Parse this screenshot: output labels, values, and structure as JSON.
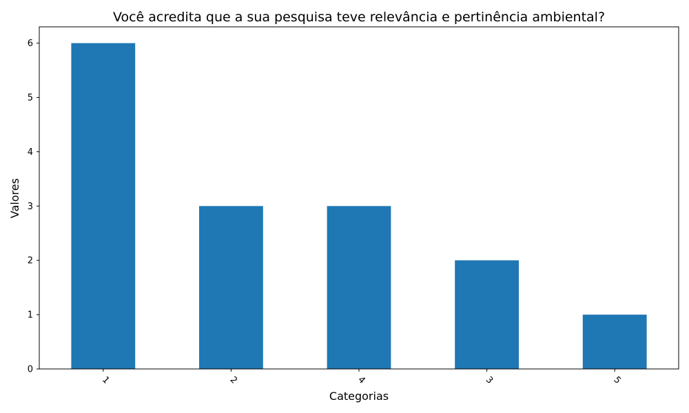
{
  "chart_data": {
    "type": "bar",
    "title": "Você acredita que a sua pesquisa teve relevância e pertinência ambiental?",
    "xlabel": "Categorias",
    "ylabel": "Valores",
    "categories": [
      "1",
      "2",
      "4",
      "3",
      "5"
    ],
    "values": [
      6,
      3,
      3,
      2,
      1
    ],
    "ylim": [
      0,
      6.3
    ],
    "yticks": [
      "0",
      "1",
      "2",
      "3",
      "4",
      "5",
      "6"
    ],
    "x_tick_rotation_deg": 45,
    "bar_color": "#1f77b4",
    "grid": false,
    "legend": "none"
  }
}
